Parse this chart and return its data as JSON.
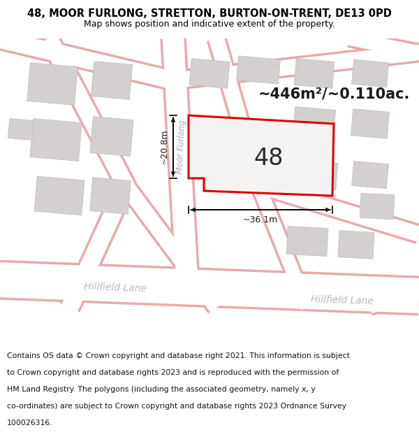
{
  "title_line1": "48, MOOR FURLONG, STRETTON, BURTON-ON-TRENT, DE13 0PD",
  "title_line2": "Map shows position and indicative extent of the property.",
  "area_label": "~446m²/~0.110ac.",
  "number_label": "48",
  "width_label": "~36.1m",
  "height_label": "~20.8m",
  "street_label1": "Moor Furlong",
  "street_label2": "Hillfield Lane",
  "street_label3": "Hillfield Lane",
  "footer_lines": [
    "Contains OS data © Crown copyright and database right 2021. This information is subject",
    "to Crown copyright and database rights 2023 and is reproduced with the permission of",
    "HM Land Registry. The polygons (including the associated geometry, namely x, y",
    "co-ordinates) are subject to Crown copyright and database rights 2023 Ordnance Survey",
    "100026316."
  ],
  "map_bg": "#ede9e9",
  "road_color": "#ffffff",
  "building_color": "#d4d0d0",
  "property_fill": "#f5f2f2",
  "property_edge": "#dd0000",
  "road_outline": "#e8aaaa",
  "title_fontsize": 10.5,
  "subtitle_fontsize": 9,
  "footer_fontsize": 7.8,
  "area_fontsize": 15,
  "number_fontsize": 24
}
